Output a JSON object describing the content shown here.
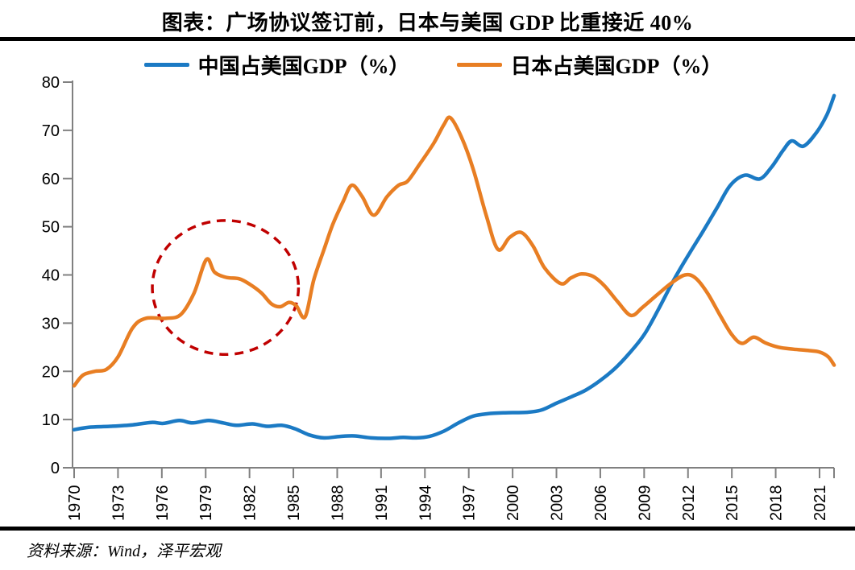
{
  "title": "图表：广场协议签订前，日本与美国 GDP 比重接近 40%",
  "source": "资料来源：Wind，泽平宏观",
  "legend": [
    {
      "label": "中国占美国GDP（%）",
      "color": "#1B7AC4"
    },
    {
      "label": "日本占美国GDP（%）",
      "color": "#E87E23"
    }
  ],
  "colors": {
    "china_line": "#1B7AC4",
    "japan_line": "#E87E23",
    "annotation_circle": "#C00000",
    "axis": "#808080",
    "divider": "#000000"
  },
  "chart_data": {
    "type": "line",
    "title": "图表：广场协议签订前，日本与美国 GDP 比重接近 40%",
    "xlabel": "",
    "ylabel": "",
    "x_axis": {
      "range": [
        1970,
        2022
      ],
      "tick_years": [
        1970,
        1973,
        1976,
        1979,
        1982,
        1985,
        1988,
        1991,
        1994,
        1997,
        2000,
        2003,
        2006,
        2009,
        2012,
        2015,
        2018,
        2021
      ],
      "tick_label_rotation_deg": -90
    },
    "y_axis": {
      "range": [
        0,
        80
      ],
      "ticks": [
        0,
        10,
        20,
        30,
        40,
        50,
        60,
        70,
        80
      ]
    },
    "grid": false,
    "legend_position": "top",
    "series": [
      {
        "name": "中国占美国GDP（%）",
        "color": "#1B7AC4",
        "points": [
          [
            1970.0,
            7.9
          ],
          [
            1971.0,
            8.4
          ],
          [
            1972.5,
            8.6
          ],
          [
            1974.0,
            8.9
          ],
          [
            1975.3,
            9.4
          ],
          [
            1976.1,
            9.2
          ],
          [
            1977.2,
            9.8
          ],
          [
            1978.1,
            9.3
          ],
          [
            1979.2,
            9.8
          ],
          [
            1980.2,
            9.3
          ],
          [
            1981.1,
            8.8
          ],
          [
            1982.2,
            9.1
          ],
          [
            1983.2,
            8.6
          ],
          [
            1984.2,
            8.8
          ],
          [
            1985.1,
            8.1
          ],
          [
            1986.1,
            6.8
          ],
          [
            1987.1,
            6.2
          ],
          [
            1988.2,
            6.5
          ],
          [
            1989.2,
            6.6
          ],
          [
            1990.3,
            6.2
          ],
          [
            1991.5,
            6.1
          ],
          [
            1992.5,
            6.3
          ],
          [
            1993.4,
            6.2
          ],
          [
            1994.3,
            6.5
          ],
          [
            1995.3,
            7.6
          ],
          [
            1996.3,
            9.3
          ],
          [
            1997.3,
            10.7
          ],
          [
            1998.3,
            11.2
          ],
          [
            1999.5,
            11.4
          ],
          [
            2001.0,
            11.5
          ],
          [
            2002.0,
            12.0
          ],
          [
            2003.0,
            13.4
          ],
          [
            2004.0,
            14.7
          ],
          [
            2005.0,
            16.1
          ],
          [
            2006.0,
            18.1
          ],
          [
            2007.0,
            20.6
          ],
          [
            2008.0,
            23.8
          ],
          [
            2009.0,
            27.6
          ],
          [
            2010.0,
            33.0
          ],
          [
            2011.0,
            38.8
          ],
          [
            2012.0,
            44.0
          ],
          [
            2013.0,
            48.9
          ],
          [
            2014.0,
            54.0
          ],
          [
            2014.9,
            58.6
          ],
          [
            2015.9,
            60.7
          ],
          [
            2016.9,
            59.9
          ],
          [
            2017.7,
            62.3
          ],
          [
            2018.5,
            65.8
          ],
          [
            2019.1,
            67.8
          ],
          [
            2019.9,
            66.7
          ],
          [
            2020.8,
            69.6
          ],
          [
            2021.5,
            73.2
          ],
          [
            2022.0,
            77.2
          ]
        ]
      },
      {
        "name": "日本占美国GDP（%）",
        "color": "#E87E23",
        "points": [
          [
            1970.0,
            17.0
          ],
          [
            1970.6,
            19.2
          ],
          [
            1971.4,
            20.0
          ],
          [
            1972.2,
            20.4
          ],
          [
            1973.0,
            23.0
          ],
          [
            1974.0,
            29.0
          ],
          [
            1974.9,
            31.0
          ],
          [
            1976.3,
            31.0
          ],
          [
            1977.3,
            31.8
          ],
          [
            1978.2,
            36.2
          ],
          [
            1979.05,
            43.2
          ],
          [
            1979.6,
            40.6
          ],
          [
            1980.4,
            39.5
          ],
          [
            1981.3,
            39.2
          ],
          [
            1982.0,
            38.1
          ],
          [
            1982.8,
            36.3
          ],
          [
            1983.5,
            34.0
          ],
          [
            1984.1,
            33.4
          ],
          [
            1984.7,
            34.3
          ],
          [
            1985.2,
            33.6
          ],
          [
            1985.8,
            31.3
          ],
          [
            1986.4,
            39.0
          ],
          [
            1987.1,
            45.3
          ],
          [
            1987.7,
            50.5
          ],
          [
            1988.4,
            55.2
          ],
          [
            1989.0,
            58.6
          ],
          [
            1989.7,
            56.3
          ],
          [
            1990.5,
            52.4
          ],
          [
            1991.4,
            56.2
          ],
          [
            1992.2,
            58.6
          ],
          [
            1992.8,
            59.4
          ],
          [
            1993.6,
            62.8
          ],
          [
            1994.6,
            67.3
          ],
          [
            1995.3,
            71.2
          ],
          [
            1995.75,
            72.6
          ],
          [
            1996.5,
            68.6
          ],
          [
            1997.3,
            62.0
          ],
          [
            1998.2,
            52.3
          ],
          [
            1999.0,
            45.3
          ],
          [
            1999.8,
            47.8
          ],
          [
            2000.6,
            48.8
          ],
          [
            2001.4,
            46.0
          ],
          [
            2002.2,
            41.4
          ],
          [
            2003.3,
            38.2
          ],
          [
            2004.0,
            39.4
          ],
          [
            2004.7,
            40.2
          ],
          [
            2005.5,
            39.7
          ],
          [
            2006.3,
            37.7
          ],
          [
            2007.2,
            34.4
          ],
          [
            2008.1,
            31.6
          ],
          [
            2008.9,
            33.3
          ],
          [
            2009.9,
            35.9
          ],
          [
            2010.9,
            38.4
          ],
          [
            2011.8,
            40.0
          ],
          [
            2012.5,
            39.4
          ],
          [
            2013.3,
            36.4
          ],
          [
            2014.2,
            31.6
          ],
          [
            2015.0,
            27.6
          ],
          [
            2015.7,
            25.8
          ],
          [
            2016.5,
            27.1
          ],
          [
            2017.3,
            25.9
          ],
          [
            2018.2,
            25.0
          ],
          [
            2019.2,
            24.6
          ],
          [
            2020.3,
            24.3
          ],
          [
            2021.0,
            24.0
          ],
          [
            2021.6,
            23.0
          ],
          [
            2022.0,
            21.3
          ]
        ]
      }
    ],
    "annotation_circle": {
      "center_year": 1980.35,
      "center_value": 37.4,
      "radius_years": 5.0,
      "radius_units": 13.9,
      "color": "#C00000",
      "style": "dashed"
    }
  }
}
